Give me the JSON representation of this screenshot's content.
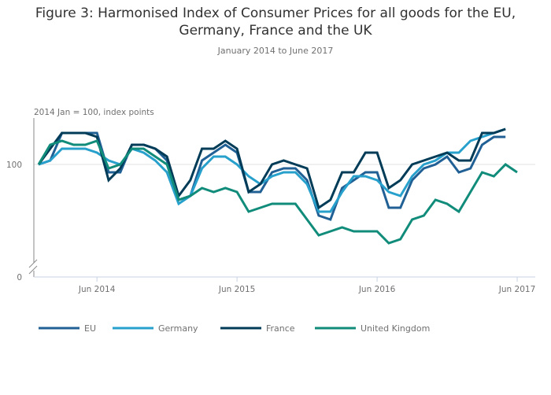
{
  "header": {
    "title_line1": "Figure 3: Harmonised Index of Consumer Prices for all goods for the EU,",
    "title_line2": "Germany, France and the UK",
    "subtitle": "January 2014 to June 2017"
  },
  "chart_data": {
    "type": "line",
    "title": "Figure 3: Harmonised Index of Consumer Prices for all goods for the EU, Germany, France and the UK",
    "subtitle": "January 2014 to June 2017",
    "ylabel": "2014 Jan = 100, index points",
    "xlabel": "",
    "y_ticks": [
      "0",
      "100"
    ],
    "y_axis_break": true,
    "x_ticks": [
      "Jun 2014",
      "Jun 2015",
      "Jun 2016",
      "Jun 2017"
    ],
    "x": [
      "Jan 2014",
      "Feb 2014",
      "Mar 2014",
      "Apr 2014",
      "May 2014",
      "Jun 2014",
      "Jul 2014",
      "Aug 2014",
      "Sep 2014",
      "Oct 2014",
      "Nov 2014",
      "Dec 2014",
      "Jan 2015",
      "Feb 2015",
      "Mar 2015",
      "Apr 2015",
      "May 2015",
      "Jun 2015",
      "Jul 2015",
      "Aug 2015",
      "Sep 2015",
      "Oct 2015",
      "Nov 2015",
      "Dec 2015",
      "Jan 2016",
      "Feb 2016",
      "Mar 2016",
      "Apr 2016",
      "May 2016",
      "Jun 2016",
      "Jul 2016",
      "Aug 2016",
      "Sep 2016",
      "Oct 2016",
      "Nov 2016",
      "Dec 2016",
      "Jan 2017",
      "Feb 2017",
      "Mar 2017",
      "Apr 2017",
      "May 2017",
      "Jun 2017"
    ],
    "grid": "horizontal at 100",
    "legend_position": "bottom",
    "series": [
      {
        "name": "EU",
        "color": "#206095",
        "values": [
          100.0,
          100.1,
          100.8,
          100.8,
          100.8,
          100.8,
          99.8,
          99.8,
          100.5,
          100.5,
          100.4,
          100.1,
          99.1,
          99.2,
          100.1,
          100.3,
          100.5,
          100.3,
          99.3,
          99.3,
          99.8,
          99.9,
          99.9,
          99.6,
          98.7,
          98.6,
          99.4,
          99.6,
          99.8,
          99.8,
          98.9,
          98.9,
          99.6,
          99.9,
          100.0,
          100.2,
          99.8,
          99.9,
          100.5,
          100.7,
          100.7,
          null
        ]
      },
      {
        "name": "Germany",
        "color": "#27a0cc",
        "values": [
          100.0,
          100.1,
          100.4,
          100.4,
          100.4,
          100.3,
          100.1,
          100.0,
          100.4,
          100.3,
          100.1,
          99.8,
          99.0,
          99.2,
          99.9,
          100.2,
          100.2,
          100.0,
          99.7,
          99.5,
          99.7,
          99.8,
          99.8,
          99.5,
          98.8,
          98.8,
          99.3,
          99.7,
          99.7,
          99.6,
          99.3,
          99.2,
          99.7,
          100.0,
          100.1,
          100.3,
          100.3,
          100.6,
          100.7,
          100.8,
          100.9,
          null
        ]
      },
      {
        "name": "France",
        "color": "#003c57",
        "values": [
          100.0,
          100.4,
          100.8,
          100.8,
          100.8,
          100.7,
          99.6,
          99.9,
          100.5,
          100.5,
          100.4,
          100.2,
          99.2,
          99.6,
          100.4,
          100.4,
          100.6,
          100.4,
          99.3,
          99.5,
          100.0,
          100.1,
          100.0,
          99.9,
          98.9,
          99.1,
          99.8,
          99.8,
          100.3,
          100.3,
          99.4,
          99.6,
          100.0,
          100.1,
          100.2,
          100.3,
          100.1,
          100.1,
          100.8,
          100.8,
          100.9,
          null
        ]
      },
      {
        "name": "United Kingdom",
        "color": "#118c7b",
        "values": [
          100.0,
          100.5,
          100.6,
          100.5,
          100.5,
          100.6,
          99.9,
          100.0,
          100.4,
          100.4,
          100.2,
          100.0,
          99.1,
          99.2,
          99.4,
          99.3,
          99.4,
          99.3,
          98.8,
          98.9,
          99.0,
          99.0,
          99.0,
          98.6,
          98.2,
          98.3,
          98.4,
          98.3,
          98.3,
          98.3,
          98.0,
          98.1,
          98.6,
          98.7,
          99.1,
          99.0,
          98.8,
          99.3,
          99.8,
          99.7,
          100.0,
          99.8
        ]
      }
    ]
  }
}
